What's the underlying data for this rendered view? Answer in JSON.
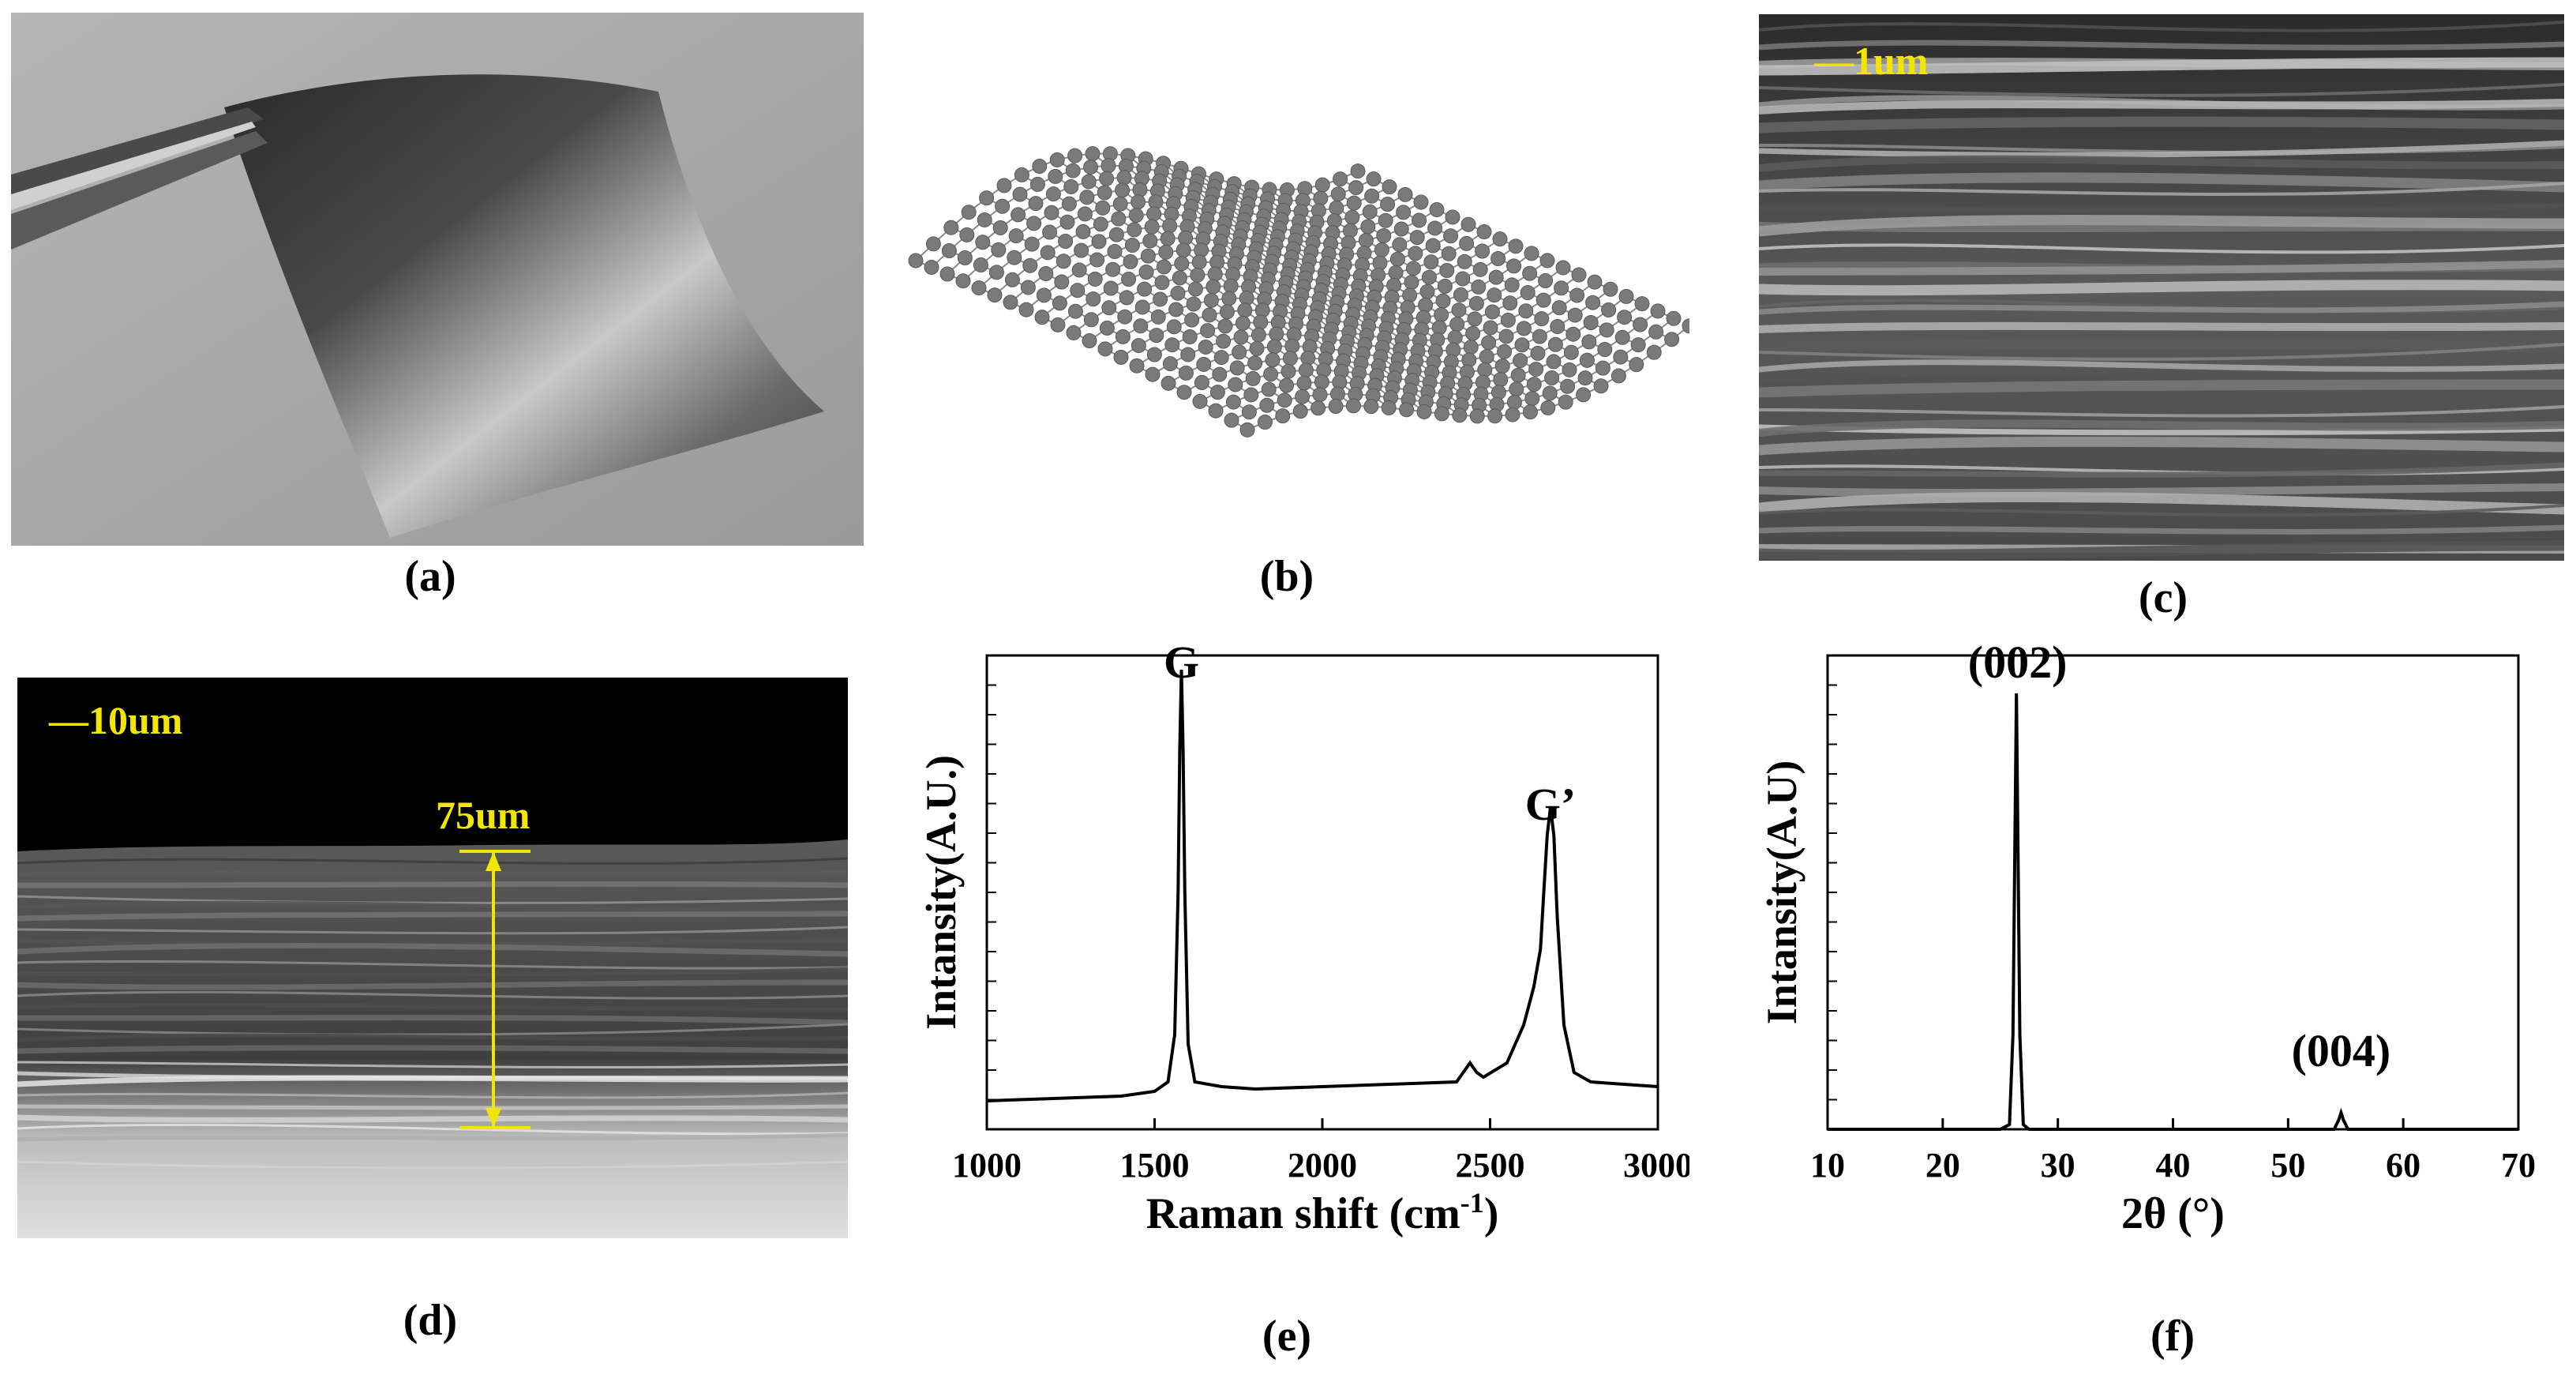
{
  "panels": {
    "a": {
      "caption": "(a)"
    },
    "b": {
      "caption": "(b)"
    },
    "c": {
      "caption": "(c)",
      "scale_label": "—1um"
    },
    "d": {
      "caption": "(d)",
      "scale_label": "—10um",
      "thickness_label": "75um"
    },
    "e": {
      "caption": "(e)"
    },
    "f": {
      "caption": "(f)"
    }
  },
  "colors": {
    "annotation_yellow": "#f2e600",
    "spectrum_line": "#000000"
  },
  "chart_data": [
    {
      "type": "line",
      "panel": "e",
      "xlabel": "Raman shift (cm",
      "xlabel_sup": "-1",
      "xlabel_end": ")",
      "ylabel": "Intansity(A.U.)",
      "xlim": [
        1000,
        3000
      ],
      "xticks": [
        "1000",
        "1500",
        "2000",
        "2500",
        "3000"
      ],
      "ylim": [
        0,
        1
      ],
      "annotations": [
        {
          "text": "G",
          "x": 1580,
          "y": 0.92
        },
        {
          "text": "G’",
          "x": 2680,
          "y": 0.62
        }
      ],
      "series": [
        {
          "x": [
            1000,
            1200,
            1400,
            1500,
            1540,
            1560,
            1570,
            1575,
            1580,
            1585,
            1590,
            1600,
            1620,
            1700,
            1800,
            2000,
            2200,
            2400,
            2440,
            2460,
            2480,
            2550,
            2600,
            2630,
            2650,
            2660,
            2670,
            2680,
            2690,
            2700,
            2720,
            2750,
            2800,
            3000
          ],
          "y": [
            0.06,
            0.065,
            0.07,
            0.08,
            0.1,
            0.2,
            0.5,
            0.8,
            0.97,
            0.8,
            0.5,
            0.18,
            0.1,
            0.09,
            0.085,
            0.09,
            0.095,
            0.1,
            0.14,
            0.12,
            0.11,
            0.14,
            0.22,
            0.3,
            0.38,
            0.5,
            0.62,
            0.68,
            0.62,
            0.45,
            0.22,
            0.12,
            0.1,
            0.09
          ]
        }
      ]
    },
    {
      "type": "line",
      "panel": "f",
      "xlabel": "2θ (°)",
      "ylabel": "Intansity(A.U)",
      "xlim": [
        10,
        70
      ],
      "xticks": [
        "10",
        "20",
        "30",
        "40",
        "50",
        "60",
        "70"
      ],
      "ylim": [
        0,
        1
      ],
      "annotations": [
        {
          "text": "(002)",
          "x": 26.5,
          "y": 0.92
        },
        {
          "text": "(004)",
          "x": 54.6,
          "y": 0.1
        }
      ],
      "series": [
        {
          "x": [
            10,
            20,
            25,
            25.8,
            26.1,
            26.4,
            26.7,
            27.0,
            27.5,
            30,
            40,
            50,
            54.0,
            54.4,
            54.6,
            54.8,
            55.2,
            60,
            70
          ],
          "y": [
            0.0,
            0.0,
            0.0,
            0.01,
            0.2,
            0.92,
            0.2,
            0.01,
            0.0,
            0.0,
            0.0,
            0.0,
            0.0,
            0.02,
            0.035,
            0.02,
            0.0,
            0.0,
            0.0
          ]
        }
      ]
    }
  ]
}
